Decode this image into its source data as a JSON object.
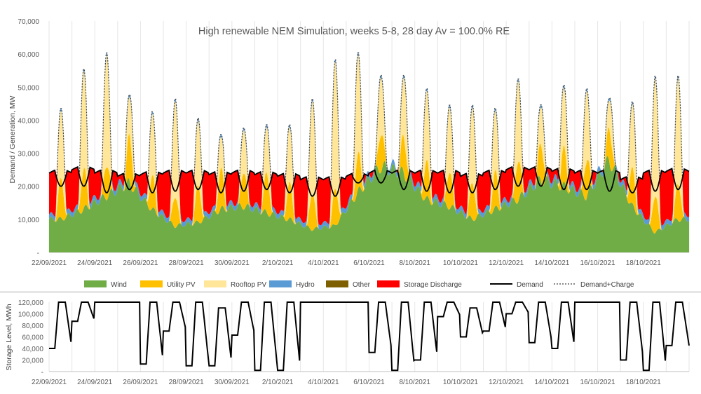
{
  "chart_data": [
    {
      "type": "area",
      "title": "High renewable NEM Simulation, weeks 5-8, 28 day Av = 100.0% RE",
      "xlabel": "",
      "ylabel": "Demand / Generation, MW",
      "ylim": [
        0,
        70000
      ],
      "yticks": [
        "-",
        "10,000",
        "20,000",
        "30,000",
        "40,000",
        "50,000",
        "60,000",
        "70,000"
      ],
      "xticks": [
        "22/09/2021",
        "24/09/2021",
        "26/09/2021",
        "28/09/2021",
        "30/09/2021",
        "2/10/2021",
        "4/10/2021",
        "6/10/2021",
        "8/10/2021",
        "10/10/2021",
        "12/10/2021",
        "14/10/2021",
        "16/10/2021",
        "18/10/2021"
      ],
      "days": 28,
      "grid": "vertical",
      "legend_position": "bottom",
      "series": [
        {
          "name": "Wind",
          "color": "#70ad47",
          "daily": [
            10000,
            13000,
            17000,
            21000,
            13000,
            8000,
            9000,
            13000,
            14000,
            12000,
            10000,
            7000,
            8000,
            18000,
            26000,
            24000,
            16000,
            14000,
            10000,
            13000,
            16000,
            22000,
            20000,
            17000,
            28000,
            14000,
            6000,
            10000
          ]
        },
        {
          "name": "Utility PV",
          "color": "#ffc000",
          "daily_peak": [
            12000,
            12000,
            10000,
            14000,
            10000,
            9000,
            11000,
            12000,
            11000,
            12000,
            11000,
            11000,
            11000,
            11000,
            11000,
            11000,
            11000,
            11000,
            11000,
            11000,
            12000,
            11000,
            11000,
            11000,
            10000,
            11000,
            11000,
            11000
          ]
        },
        {
          "name": "Rooftop PV",
          "color": "#ffe699",
          "daily_peak": [
            43000,
            55000,
            60000,
            47000,
            42000,
            46000,
            40000,
            35000,
            37000,
            38000,
            38000,
            46000,
            58000,
            60000,
            53000,
            53000,
            49000,
            44000,
            44000,
            43000,
            52000,
            44000,
            50000,
            49000,
            46000,
            45000,
            53000,
            53000
          ]
        },
        {
          "name": "Hydro",
          "color": "#5b9bd5"
        },
        {
          "name": "Other",
          "color": "#7f6000"
        },
        {
          "name": "Storage Discharge",
          "color": "#ff0000"
        },
        {
          "name": "Demand",
          "color": "#000000",
          "daily_night": [
            24000,
            25000,
            24000,
            23000,
            23500,
            24000,
            24000,
            23500,
            24000,
            23500,
            23000,
            22000,
            22000,
            23000,
            24000,
            24000,
            24000,
            24000,
            23000,
            24000,
            25000,
            25000,
            24500,
            24000,
            24000,
            22000,
            24000,
            24500
          ],
          "daily_midday": [
            20000,
            20000,
            18000,
            19000,
            18000,
            18500,
            19000,
            18000,
            18500,
            19000,
            18000,
            17000,
            17000,
            21000,
            21000,
            19000,
            18500,
            18000,
            18000,
            19000,
            20000,
            20000,
            19000,
            19000,
            18500,
            18000,
            18500,
            19000
          ]
        },
        {
          "name": "Demand+Charge",
          "color": "#404040"
        }
      ]
    },
    {
      "type": "line",
      "title": "",
      "xlabel": "",
      "ylabel": "Storage Level, MWh",
      "ylim": [
        0,
        120000
      ],
      "yticks": [
        "-",
        "20,000",
        "40,000",
        "60,000",
        "80,000",
        "100,000",
        "120,000"
      ],
      "xticks": [
        "22/09/2021",
        "24/09/2021",
        "26/09/2021",
        "28/09/2021",
        "30/09/2021",
        "2/10/2021",
        "4/10/2021",
        "6/10/2021",
        "8/10/2021",
        "10/10/2021",
        "12/10/2021",
        "14/10/2021",
        "16/10/2021",
        "18/10/2021"
      ],
      "series": [
        {
          "name": "Storage Level",
          "color": "#000000",
          "daily_peak": [
            120000,
            120000,
            120000,
            120000,
            120000,
            120000,
            120000,
            110000,
            120000,
            120000,
            120000,
            120000,
            120000,
            120000,
            120000,
            120000,
            120000,
            120000,
            110000,
            120000,
            120000,
            120000,
            120000,
            120000,
            120000,
            120000,
            120000,
            120000
          ],
          "daily_min": [
            40000,
            87000,
            120000,
            120000,
            13000,
            70000,
            10000,
            10000,
            63000,
            2000,
            2000,
            120000,
            120000,
            120000,
            33000,
            2000,
            20000,
            95000,
            60000,
            70000,
            100000,
            50000,
            40000,
            120000,
            120000,
            20000,
            2000,
            45000
          ]
        }
      ]
    }
  ]
}
